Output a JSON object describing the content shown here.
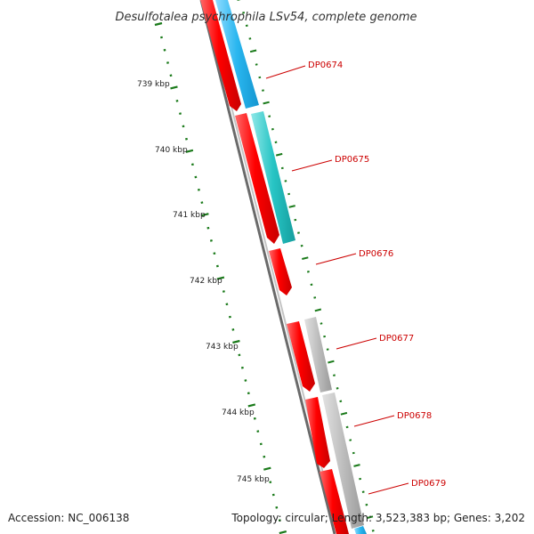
{
  "title": "Desulfotalea psychrophila LSv54, complete genome",
  "scale_labels": [
    "739 kbp",
    "740 kbp",
    "741 kbp",
    "742 kbp",
    "743 kbp",
    "744 kbp",
    "745 kbp"
  ],
  "genes": [
    {
      "name": "DP0674"
    },
    {
      "name": "DP0675"
    },
    {
      "name": "DP0676"
    },
    {
      "name": "DP0677"
    },
    {
      "name": "DP0678"
    },
    {
      "name": "DP0679"
    }
  ],
  "footer": {
    "accession": "Accession: NC_006138",
    "summary": "Topology: circular; Length: 3,523,383 bp; Genes: 3,202"
  },
  "colors": {
    "cds": "#ff0000",
    "label": "#cc0000",
    "backbone": "#777777",
    "tick": "#1a7a1a",
    "blue_feature": "#29b6ef",
    "teal_feature": "#27c4c4",
    "gray_feature": "#b4b4b4"
  }
}
